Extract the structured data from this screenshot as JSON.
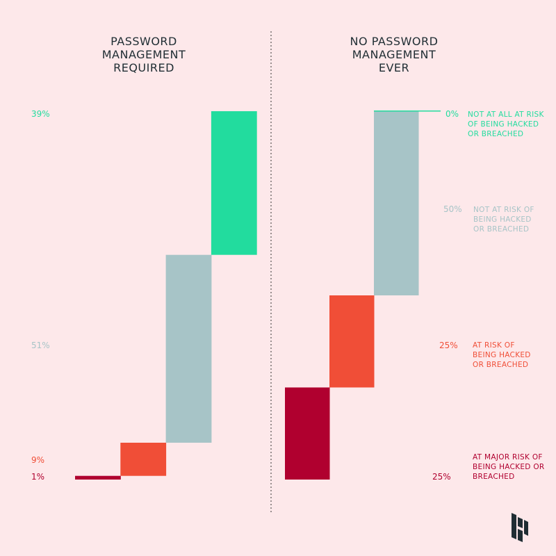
{
  "chart_data": [
    {
      "type": "waterfall",
      "title_lines": [
        "PASSWORD",
        "MANAGEMENT",
        "REQUIRED"
      ],
      "categories": [
        "At major risk",
        "At risk",
        "Not at risk",
        "Not at all at risk"
      ],
      "values": [
        1,
        9,
        51,
        39
      ],
      "value_labels": [
        "1%",
        "9%",
        "51%",
        "39%"
      ],
      "ylim": [
        0,
        100
      ]
    },
    {
      "type": "waterfall",
      "title_lines": [
        "NO PASSWORD",
        "MANAGEMENT",
        "EVER"
      ],
      "categories": [
        "At major risk",
        "At risk",
        "Not at risk",
        "Not at all at risk"
      ],
      "values": [
        25,
        25,
        50,
        0
      ],
      "value_labels": [
        "25%",
        "25%",
        "50%",
        "0%"
      ],
      "ylim": [
        0,
        100
      ]
    }
  ],
  "legend": [
    {
      "lines": [
        "AT MAJOR RISK OF",
        "BEING HACKED OR",
        "BREACHED"
      ],
      "color": "#b0002f"
    },
    {
      "lines": [
        "AT RISK OF",
        "BEING HACKED",
        "OR BREACHED"
      ],
      "color": "#f04e37"
    },
    {
      "lines": [
        "NOT AT RISK OF",
        "BEING HACKED",
        "OR BREACHED"
      ],
      "color": "#a7c4c7"
    },
    {
      "lines": [
        "NOT AT ALL AT RISK",
        "OF BEING HACKED",
        "OR BREACHED"
      ],
      "color": "#22dc9e"
    }
  ],
  "colors": [
    "#b0002f",
    "#f04e37",
    "#a7c4c7",
    "#22dc9e"
  ],
  "background": "#fde8ea",
  "logo": "dashlane-logo-icon"
}
